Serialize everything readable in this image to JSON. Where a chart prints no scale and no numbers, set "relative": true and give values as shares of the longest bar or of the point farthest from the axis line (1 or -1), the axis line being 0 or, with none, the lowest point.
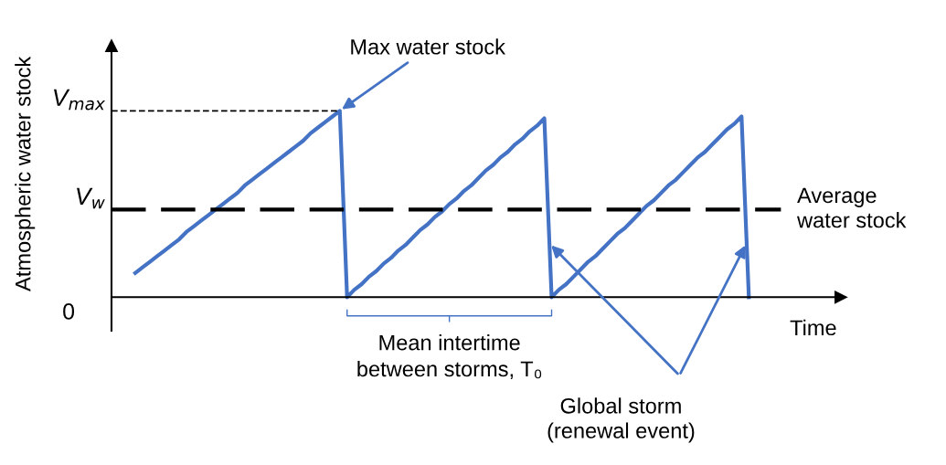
{
  "chart_data": {
    "type": "line",
    "relative": true,
    "xlabel": "Time",
    "ylabel": "Atmospheric water stock",
    "categories": [
      null,
      null,
      null,
      null,
      null,
      null,
      null,
      null,
      null,
      null,
      null,
      null,
      null,
      null,
      null,
      null,
      null,
      null,
      null,
      null,
      null,
      null,
      null,
      null,
      null,
      null,
      null,
      null,
      null,
      null,
      null,
      null,
      null,
      null,
      null,
      null,
      null,
      null,
      null,
      null,
      null,
      null,
      null,
      null,
      null,
      null,
      null,
      null,
      null,
      null,
      null,
      null,
      null,
      null,
      null,
      null,
      null,
      null,
      null,
      null,
      null,
      null,
      null,
      null,
      null,
      null,
      null,
      null,
      null,
      null,
      null,
      null,
      null,
      null,
      null,
      null,
      null,
      null,
      null,
      null,
      null,
      null,
      null,
      null,
      null
    ],
    "marker": "none",
    "line_style": "solid",
    "series": [
      {
        "color": "#4472c4",
        "values": [
          0.13,
          0.16,
          0.19,
          0.22,
          0.25,
          0.28,
          0.31,
          0.35,
          0.38,
          0.41,
          0.44,
          0.47,
          0.5,
          0.53,
          0.56,
          0.6,
          0.63,
          0.66,
          0.69,
          0.72,
          0.75,
          0.78,
          0.81,
          0.84,
          0.88,
          0.91,
          0.94,
          0.97,
          1,
          0,
          0.04,
          0.07,
          0.11,
          0.14,
          0.18,
          0.21,
          0.25,
          0.28,
          0.32,
          0.36,
          0.39,
          0.43,
          0.46,
          0.5,
          0.53,
          0.57,
          0.6,
          0.64,
          0.68,
          0.71,
          0.75,
          0.78,
          0.82,
          0.85,
          0.89,
          0.92,
          0.96,
          0,
          0.04,
          0.07,
          0.11,
          0.15,
          0.19,
          0.22,
          0.26,
          0.3,
          0.34,
          0.37,
          0.41,
          0.45,
          0.49,
          0.52,
          0.56,
          0.6,
          0.63,
          0.67,
          0.71,
          0.75,
          0.78,
          0.82,
          0.86,
          0.9,
          0.93,
          0.97,
          0
        ]
      }
    ],
    "ref_lines": [
      {
        "axis": "y",
        "value": 1,
        "label": "V$_{max}$",
        "line_style": "dotted",
        "color": "#000000"
      },
      {
        "axis": "y",
        "value": 0.47,
        "label": "V$_{w}$",
        "line_style": "dashed",
        "color": "#000000"
      }
    ],
    "annotations": [
      "0",
      "Average water stock",
      "Max water stock",
      "Mean intertime between storms, T₀",
      "Global storm (renewal event)"
    ]
  }
}
